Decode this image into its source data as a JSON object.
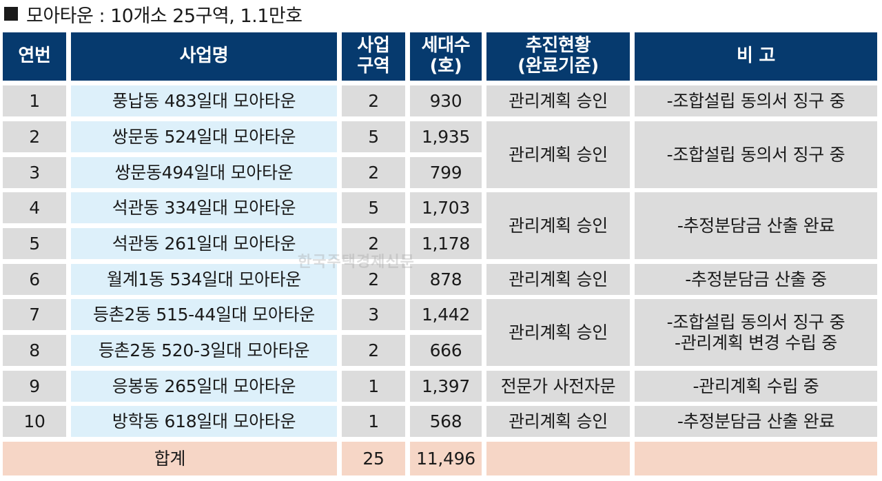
{
  "title": "모아타운 : 10개소 25구역, 1.1만호",
  "headers": {
    "no": "연번",
    "name": "사업명",
    "zones": "사업\n구역",
    "households": "세대수\n(호)",
    "status": "추진현황\n(완료기준)",
    "remark": "비 고"
  },
  "rows": [
    {
      "no": "1",
      "name": "풍납동 483일대 모아타운",
      "zones": "2",
      "households": "930"
    },
    {
      "no": "2",
      "name": "쌍문동 524일대 모아타운",
      "zones": "5",
      "households": "1,935"
    },
    {
      "no": "3",
      "name": "쌍문동494일대 모아타운",
      "zones": "2",
      "households": "799"
    },
    {
      "no": "4",
      "name": "석관동 334일대 모아타운",
      "zones": "5",
      "households": "1,703"
    },
    {
      "no": "5",
      "name": "석관동 261일대 모아타운",
      "zones": "2",
      "households": "1,178"
    },
    {
      "no": "6",
      "name": "월계1동 534일대 모아타운",
      "zones": "2",
      "households": "878"
    },
    {
      "no": "7",
      "name": "등촌2동 515-44일대 모아타운",
      "zones": "3",
      "households": "1,442"
    },
    {
      "no": "8",
      "name": "등촌2동 520-3일대 모아타운",
      "zones": "2",
      "households": "666"
    },
    {
      "no": "9",
      "name": "응봉동 265일대 모아타운",
      "zones": "1",
      "households": "1,397"
    },
    {
      "no": "10",
      "name": "방학동 618일대 모아타운",
      "zones": "1",
      "households": "568"
    }
  ],
  "groups": [
    {
      "status": "관리계획 승인",
      "remark": "-조합설립 동의서 징구 중"
    },
    {
      "status": "관리계획 승인",
      "remark": "-조합설립 동의서 징구 중"
    },
    {
      "status": "관리계획 승인",
      "remark": "-추정분담금 산출 완료"
    },
    {
      "status": "관리계획 승인",
      "remark": "-추정분담금 산출 중"
    },
    {
      "status": "관리계획 승인",
      "remark": "-조합설립 동의서 징구 중\n-관리계획 변경 수립 중"
    },
    {
      "status": "전문가 사전자문",
      "remark": "-관리계획 수립 중"
    },
    {
      "status": "관리계획 승인",
      "remark": "-추정분담금 산출 완료"
    }
  ],
  "total": {
    "label": "합계",
    "zones": "25",
    "households": "11,496",
    "status": "",
    "remark": ""
  },
  "watermark": "한국주택경제신문",
  "colors": {
    "header": "#063a6e",
    "gray": "#dcdcdc",
    "blue": "#ddf0fa",
    "total": "#f6d6c6"
  }
}
